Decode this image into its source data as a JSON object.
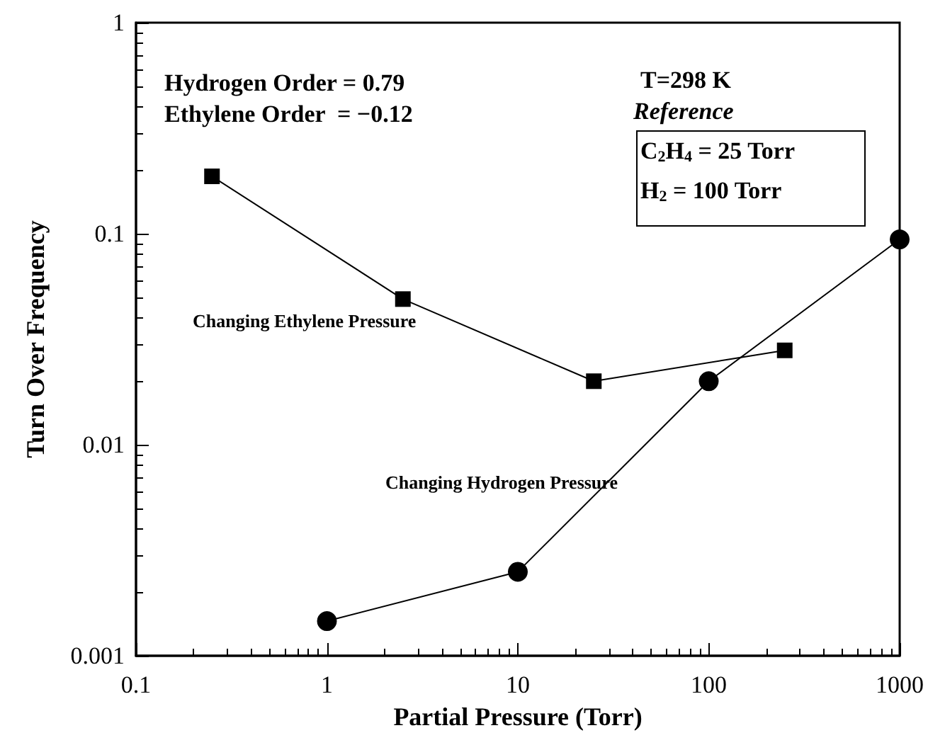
{
  "chart_data": {
    "type": "line",
    "xlabel": "Partial Pressure (Torr)",
    "ylabel": "Turn Over Frequency",
    "log": "xy",
    "xlim": [
      0.1,
      1000
    ],
    "ylim": [
      0.001,
      1
    ],
    "xticks": [
      0.1,
      1,
      10,
      100,
      1000
    ],
    "yticks": [
      0.001,
      0.01,
      0.1,
      1
    ],
    "grid": false,
    "legend": false,
    "series": [
      {
        "name": "Changing Ethylene Pressure",
        "color": "#000000",
        "marker": "square",
        "x": [
          0.25,
          2.5,
          25,
          250
        ],
        "values": [
          0.187,
          0.049,
          0.02,
          0.028
        ]
      },
      {
        "name": "Changing Hydrogen Pressure",
        "color": "#000000",
        "marker": "circle",
        "x": [
          1,
          10,
          100,
          1000
        ],
        "values": [
          0.00146,
          0.0025,
          0.02,
          0.094
        ]
      }
    ],
    "annotations": [
      "Hydrogen Order = 0.79",
      "Ethylene Order  = −0.12",
      "T=298 K",
      "Reference",
      "C$_{2}$H$_{4}$ = 25 Torr",
      "H$_{2}$ = 100 Torr"
    ]
  }
}
